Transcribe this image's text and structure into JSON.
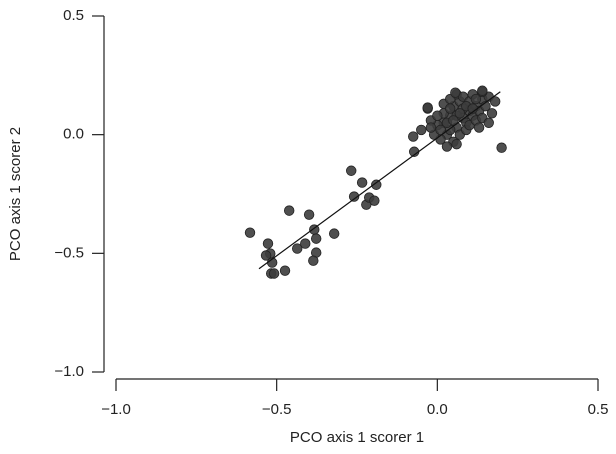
{
  "chart_data": {
    "type": "scatter",
    "xlabel": "PCO axis 1 scorer 1",
    "ylabel": "PCO axis 1 scorer 2",
    "xlim": [
      -1.0,
      0.5
    ],
    "ylim": [
      -1.0,
      0.5
    ],
    "xticks": [
      {
        "value": -1.0,
        "label": "−1.0"
      },
      {
        "value": -0.5,
        "label": "−0.5"
      },
      {
        "value": 0,
        "label": "0.0"
      },
      0.5
    ],
    "yticks": [
      {
        "value": -1.0,
        "label": "−1.0"
      },
      {
        "value": -0.5,
        "label": "−0.5"
      },
      {
        "value": 0,
        "label": "0.0"
      },
      0.5
    ],
    "color": "#3c3c3c",
    "x": [
      -0.583,
      -0.527,
      -0.52,
      -0.533,
      -0.514,
      -0.517,
      -0.508,
      -0.474,
      -0.461,
      -0.436,
      -0.411,
      -0.399,
      -0.383,
      -0.377,
      -0.377,
      -0.386,
      -0.321,
      -0.268,
      -0.259,
      -0.234,
      -0.221,
      -0.212,
      -0.196,
      -0.19,
      -0.072,
      -0.075,
      0.02,
      0.04,
      0.06,
      0.08,
      0.1,
      0.12,
      0.14,
      0.05,
      0.07,
      0.03,
      0.01,
      0.0,
      -0.02,
      -0.03,
      -0.05,
      0.09,
      0.11,
      0.13,
      0.15,
      0.16,
      0.18,
      0.17,
      0.06,
      0.08,
      0.1,
      0.05,
      0.07,
      0.09,
      0.02,
      0.04,
      -0.01,
      0.03,
      0.06,
      0.1,
      0.12,
      0.14,
      0.0,
      0.02,
      0.04,
      0.11,
      0.14,
      0.2,
      -0.03,
      0.056,
      0.14,
      0.08,
      0.06,
      0.03,
      0.01,
      0.13,
      0.16,
      -0.02,
      0.05,
      0.07,
      0.09,
      0.11,
      0.04,
      0.12
    ],
    "values": [
      -0.413,
      -0.459,
      -0.501,
      -0.509,
      -0.539,
      -0.585,
      -0.585,
      -0.573,
      -0.32,
      -0.48,
      -0.459,
      -0.337,
      -0.4,
      -0.438,
      -0.497,
      -0.531,
      -0.417,
      -0.152,
      -0.261,
      -0.202,
      -0.295,
      -0.265,
      -0.278,
      -0.211,
      -0.072,
      -0.008,
      0.05,
      0.08,
      0.03,
      0.07,
      0.1,
      0.12,
      0.15,
      0.12,
      0.14,
      0.0,
      -0.02,
      0.04,
      0.06,
      0.11,
      0.02,
      0.05,
      0.08,
      0.1,
      0.12,
      0.16,
      0.14,
      0.09,
      0.17,
      0.16,
      0.14,
      -0.03,
      0.0,
      0.02,
      0.09,
      0.02,
      0.0,
      -0.05,
      -0.04,
      0.04,
      0.06,
      0.07,
      0.08,
      0.13,
      0.15,
      0.17,
      0.18,
      -0.055,
      0.114,
      0.177,
      0.185,
      0.11,
      0.08,
      0.05,
      0.02,
      0.03,
      0.05,
      0.03,
      0.06,
      0.09,
      0.12,
      0.11,
      0.11,
      0.15
    ],
    "fit": {
      "x": [
        -0.555,
        0.196
      ],
      "y": [
        -0.565,
        0.181
      ]
    }
  }
}
